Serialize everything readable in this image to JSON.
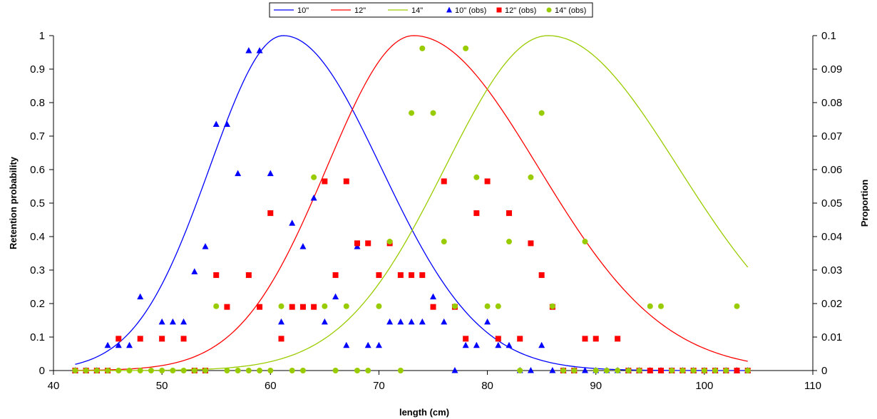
{
  "chart_data": {
    "type": "line",
    "title": "",
    "xlabel": "length (cm)",
    "ylabel": "Retention probability",
    "y2label": "Proportion",
    "xlim": [
      40,
      110
    ],
    "ylim": [
      0,
      1
    ],
    "y2lim": [
      0,
      0.1
    ],
    "xticks": [
      "40",
      "50",
      "60",
      "70",
      "80",
      "90",
      "100",
      "110"
    ],
    "yticks": [
      "0",
      "0.1",
      "0.2",
      "0.3",
      "0.4",
      "0.5",
      "0.6",
      "0.7",
      "0.8",
      "0.9",
      "1"
    ],
    "y2ticks": [
      "0",
      "0.01",
      "0.02",
      "0.03",
      "0.04",
      "0.05",
      "0.06",
      "0.07",
      "0.08",
      "0.09",
      "0.1"
    ],
    "grid": false,
    "legend_position": "top-center",
    "legend": [
      "10\"",
      "12\"",
      "14\"",
      "10\" (obs)",
      "12\" (obs)",
      "14\" (obs)"
    ],
    "curves": [
      {
        "name": "10\"",
        "color": "#0000ff",
        "x_range": [
          42,
          104
        ],
        "peak_x": 61.2,
        "sigma_left": 6.8,
        "sigma_right": 9.0
      },
      {
        "name": "12\"",
        "color": "#ff0000",
        "x_range": [
          42,
          104
        ],
        "peak_x": 73.2,
        "sigma_left": 8.0,
        "sigma_right": 11.5
      },
      {
        "name": "14\"",
        "color": "#99cc00",
        "x_range": [
          42,
          104
        ],
        "peak_x": 85.6,
        "sigma_left": 9.5,
        "sigma_right": 12.0
      }
    ],
    "observations": [
      {
        "name": "10\" (obs)",
        "color": "#0000ff",
        "marker": "triangle",
        "axis": "secondary",
        "x": [
          42,
          43,
          44,
          45,
          46,
          47,
          48,
          50,
          51,
          52,
          53,
          54,
          55,
          56,
          57,
          58,
          59,
          60,
          61,
          62,
          63,
          64,
          65,
          66,
          67,
          68,
          69,
          70,
          71,
          72,
          73,
          74,
          75,
          76,
          77,
          78,
          79,
          80,
          81,
          82,
          83,
          84,
          85,
          86,
          87,
          88,
          89,
          90,
          91,
          92,
          93,
          94,
          95,
          96,
          97,
          98,
          99,
          100,
          101,
          102,
          103,
          104
        ],
        "y": [
          0,
          0,
          0,
          0.0075,
          0.0075,
          0.0075,
          0.022,
          0.0145,
          0.0145,
          0.0145,
          0.0295,
          0.037,
          0.0735,
          0.0735,
          0.0588,
          0.0955,
          0.0955,
          0.0588,
          0.0145,
          0.044,
          0.037,
          0.0515,
          0.0145,
          0.022,
          0.0075,
          0.037,
          0.0075,
          0.0075,
          0.0145,
          0.0145,
          0.0145,
          0.0145,
          0.022,
          0.0145,
          0,
          0.0075,
          0.0075,
          0.0145,
          0.0075,
          0.0075,
          0,
          0,
          0.0075,
          0,
          0,
          0,
          0,
          0,
          0,
          0,
          0,
          0,
          0,
          0,
          0,
          0,
          0,
          0,
          0,
          0,
          0,
          0
        ]
      },
      {
        "name": "12\" (obs)",
        "color": "#ff0000",
        "marker": "square",
        "axis": "secondary",
        "x": [
          42,
          43,
          44,
          45,
          46,
          48,
          50,
          52,
          53,
          54,
          55,
          56,
          58,
          59,
          60,
          61,
          62,
          63,
          64,
          65,
          66,
          67,
          68,
          69,
          70,
          71,
          72,
          73,
          74,
          75,
          76,
          77,
          78,
          79,
          80,
          81,
          82,
          83,
          84,
          85,
          86,
          87,
          88,
          89,
          90,
          92,
          93,
          94,
          95,
          96,
          97,
          98,
          99,
          100,
          101,
          102,
          103,
          104
        ],
        "y": [
          0,
          0,
          0,
          0,
          0.0095,
          0.0095,
          0.0095,
          0.0095,
          0,
          0,
          0.0285,
          0.019,
          0.0285,
          0.019,
          0.047,
          0.0095,
          0.019,
          0.019,
          0.019,
          0.0565,
          0.0285,
          0.0565,
          0.038,
          0.038,
          0.0285,
          0.038,
          0.0285,
          0.0285,
          0.0285,
          0.019,
          0.0565,
          0.019,
          0.0095,
          0.047,
          0.0565,
          0.0095,
          0.047,
          0.0095,
          0.038,
          0.0285,
          0.019,
          0,
          0,
          0.0095,
          0.0095,
          0.0095,
          0,
          0,
          0,
          0,
          0,
          0,
          0,
          0,
          0,
          0,
          0,
          0
        ]
      },
      {
        "name": "14\" (obs)",
        "color": "#99cc00",
        "marker": "circle",
        "axis": "secondary",
        "x": [
          42,
          43,
          44,
          45,
          46,
          47,
          48,
          49,
          50,
          51,
          52,
          53,
          54,
          55,
          56,
          57,
          58,
          59,
          60,
          61,
          62,
          63,
          64,
          65,
          66,
          67,
          68,
          69,
          70,
          71,
          72,
          73,
          74,
          75,
          76,
          77,
          78,
          79,
          80,
          81,
          82,
          83,
          84,
          85,
          86,
          87,
          88,
          89,
          90,
          91,
          92,
          93,
          94,
          95,
          96,
          97,
          98,
          99,
          100,
          101,
          102,
          103,
          104
        ],
        "y": [
          0,
          0,
          0,
          0,
          0,
          0,
          0,
          0,
          0,
          0,
          0,
          0,
          0,
          0.0192,
          0,
          0,
          0,
          0,
          0,
          0.0192,
          0,
          0,
          0.0577,
          0.0192,
          0,
          0.0192,
          0,
          0,
          0.0192,
          0.0385,
          0,
          0.0769,
          0.0962,
          0.0769,
          0.0385,
          0.0192,
          0.0962,
          0.0577,
          0.0192,
          0.0192,
          0.0385,
          0,
          0.0577,
          0.0769,
          0.0192,
          0,
          0,
          0.0385,
          0,
          0,
          0,
          0,
          0,
          0.0192,
          0.0192,
          0,
          0,
          0,
          0,
          0,
          0,
          0.0192,
          0
        ]
      }
    ]
  }
}
